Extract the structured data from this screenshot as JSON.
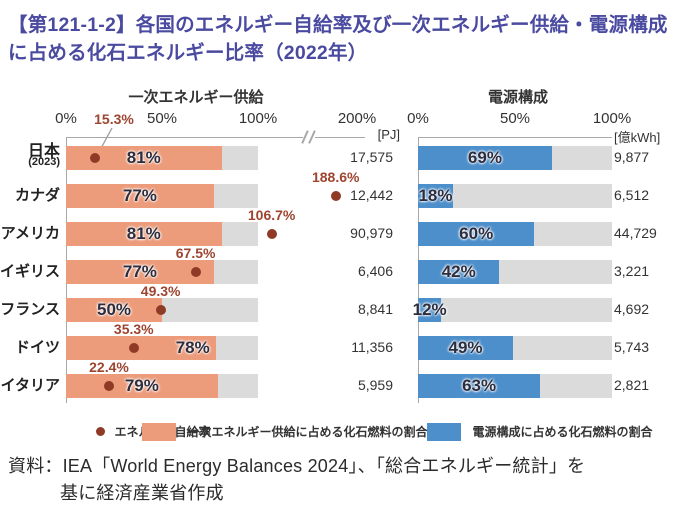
{
  "title": "【第121-1-2】各国のエネルギー自給率及び一次エネルギー供給・電源構成に占める化石エネルギー比率（2022年）",
  "left_chart": {
    "header": "一次エネルギー供給",
    "unit": "[PJ]"
  },
  "right_chart": {
    "header": "電源構成",
    "unit": "[億kWh]"
  },
  "legend": {
    "items": [
      {
        "type": "dot",
        "label": "エネルギー自給率",
        "color": "#8e3a26"
      },
      {
        "type": "swatch",
        "label": "一次エネルギー供給に占める化石燃料の割合",
        "color": "#ec9c7b"
      },
      {
        "type": "swatch",
        "label": "電源構成に占める化石燃料の割合",
        "color": "#4d8fcb"
      }
    ]
  },
  "source": {
    "line1": "資料：IEA「World Energy Balances 2024」、「総合エネルギー統計」を",
    "line2": "基に経済産業省作成"
  },
  "chart_data": {
    "type": "bar",
    "title": "各国のエネルギー自給率及び一次エネルギー供給・電源構成に占める化石エネルギー比率（2022年）",
    "categories": [
      "日本",
      "カナダ",
      "アメリカ",
      "イギリス",
      "フランス",
      "ドイツ",
      "イタリア"
    ],
    "category_notes": [
      "(2023)",
      "",
      "",
      "",
      "",
      "",
      ""
    ],
    "series": [
      {
        "name": "エネルギー自給率",
        "type": "scatter",
        "unit": "%",
        "values": [
          15.3,
          188.6,
          106.7,
          67.5,
          49.3,
          35.3,
          22.4
        ],
        "color": "#8e3a26"
      },
      {
        "name": "一次エネルギー供給に占める化石燃料の割合",
        "type": "bar",
        "unit": "%",
        "values": [
          81,
          77,
          81,
          77,
          50,
          78,
          79
        ],
        "color": "#ec9c7b"
      },
      {
        "name": "電源構成に占める化石燃料の割合",
        "type": "bar",
        "unit": "%",
        "values": [
          69,
          18,
          60,
          42,
          12,
          49,
          63
        ],
        "color": "#4d8fcb"
      }
    ],
    "totals": {
      "primary_energy_supply_PJ": [
        "17,575",
        "12,442",
        "90,979",
        "6,406",
        "8,841",
        "11,356",
        "5,959"
      ],
      "power_generation_okukWh": [
        "9,877",
        "6,512",
        "44,729",
        "3,221",
        "4,692",
        "5,743",
        "2,821"
      ]
    },
    "left_axis": {
      "ticks": [
        "0%",
        "50%",
        "100%",
        "200%"
      ],
      "break_between": [
        100,
        200
      ],
      "unit": "[PJ]"
    },
    "right_axis": {
      "ticks": [
        "0%",
        "50%",
        "100%"
      ],
      "unit": "[億kWh]"
    },
    "layout_hints": {
      "left_bar_label_align": [
        "center",
        "center",
        "center",
        "center",
        "center",
        "right",
        "center"
      ],
      "dot_offset_x": [
        0,
        -10,
        7,
        0,
        0,
        0,
        0
      ],
      "japan_dot_label_at_axis": true,
      "grid": false,
      "legend_position": "bottom"
    }
  }
}
